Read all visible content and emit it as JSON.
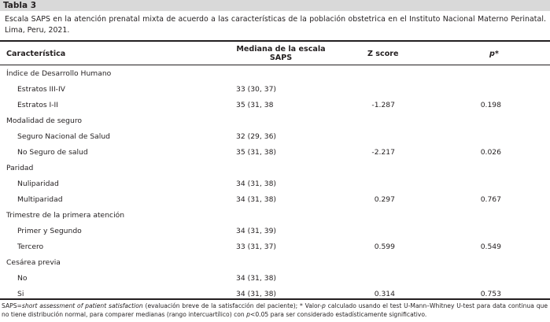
{
  "table_label": "Tabla 3",
  "caption_line1": "Escala SAPS en la atención prenatal mixta de acuerdo a las características de la población obstetrica en el Instituto Nacional Materno Perinatal.",
  "caption_line2": "Lima, Peru, 2021.",
  "headers": {
    "characteristic": "Característica",
    "median_line1": "Mediana de la escala",
    "median_line2": "SAPS",
    "z": "Z score",
    "p": "p*"
  },
  "rows": [
    {
      "label": "Índice de Desarrollo Humano",
      "median": "",
      "z": "",
      "p": ""
    },
    {
      "label": "Estratos III-IV",
      "median": "33 (30, 37)",
      "z": "",
      "p": ""
    },
    {
      "label": "Estratos I-II",
      "median": "35 (31, 38",
      "z": "-1.287",
      "p": "0.198"
    },
    {
      "label": "Modalidad de seguro",
      "median": "",
      "z": "",
      "p": ""
    },
    {
      "label": "Seguro Nacional de Salud",
      "median": "32 (29, 36)",
      "z": "",
      "p": ""
    },
    {
      "label": "No Seguro de salud",
      "median": "35 (31, 38)",
      "z": "-2.217",
      "p": "0.026"
    },
    {
      "label": "Paridad",
      "median": "",
      "z": "",
      "p": ""
    },
    {
      "label": "Nuliparidad",
      "median": "34 (31, 38)",
      "z": "",
      "p": ""
    },
    {
      "label": "Multiparidad",
      "median": "34 (31, 38)",
      "z": "0.297",
      "p": "0.767"
    },
    {
      "label": "Trimestre de la primera atención",
      "median": "",
      "z": "",
      "p": ""
    },
    {
      "label": "Primer y Segundo",
      "median": "34 (31, 39)",
      "z": "",
      "p": ""
    },
    {
      "label": "Tercero",
      "median": "33 (31, 37)",
      "z": "0.599",
      "p": "0.549"
    },
    {
      "label": "Cesárea previa",
      "median": "",
      "z": "",
      "p": ""
    },
    {
      "label": "No",
      "median": "34 (31, 38)",
      "z": "",
      "p": ""
    },
    {
      "label": "Si",
      "median": "34 (31, 38)",
      "z": "0.314",
      "p": "0.753"
    }
  ],
  "footer": {
    "abbr": "SAPS=",
    "abbr_expansion": "short assessment of patient satisfaction",
    "abbr_note": " (evaluación breve de la satisfacción del paciente); ",
    "star": "* Valor-",
    "p_symbol": "p",
    "text_a": " calculado usando el test U-Mann–Whitney U-test para data continua que no tiene distribución normal, para comparer medianas (rango intercuartílico) con ",
    "p_symbol2": "p",
    "text_b": "<0.05 para ser considerado estadísticamente significativo."
  }
}
